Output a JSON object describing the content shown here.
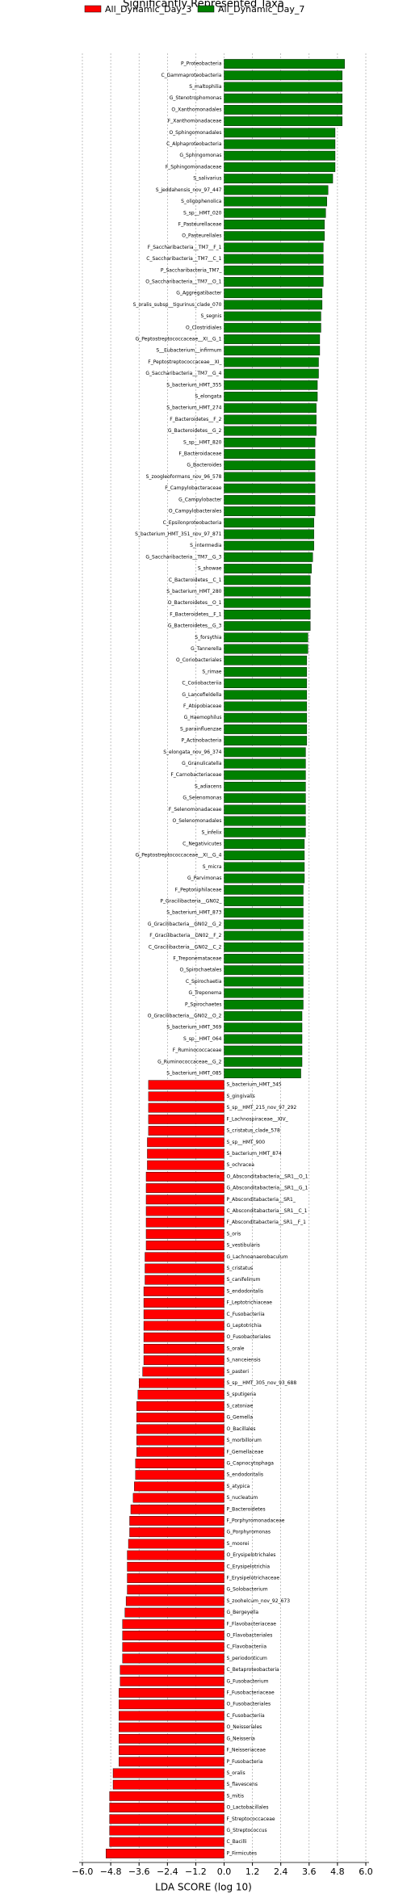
{
  "chart_data": {
    "type": "barh",
    "title": "Significantly Represented Taxa",
    "xlabel": "LDA SCORE (log 10)",
    "xlim": [
      -6.0,
      6.0
    ],
    "xticks": [
      {
        "value": -6.0,
        "label": "−6.0"
      },
      {
        "value": -4.8,
        "label": "−4.8"
      },
      {
        "value": -3.6,
        "label": "−3.6"
      },
      {
        "value": -2.4,
        "label": "−2.4"
      },
      {
        "value": -1.2,
        "label": "−1.2"
      },
      {
        "value": 0,
        "label": "0.0"
      },
      {
        "value": 1.2,
        "label": "1.2"
      },
      {
        "value": 2.4,
        "label": "2.4"
      },
      {
        "value": 3.6,
        "label": "3.6"
      },
      {
        "value": 4.8,
        "label": "4.8"
      },
      {
        "value": 6.0,
        "label": "6.0"
      }
    ],
    "grid": true,
    "series": [
      {
        "name": "All_Dynamic_Day_3",
        "color": "#ff0000",
        "categories": [
          "S_bacterium_HMT_345",
          "S_gingivalis",
          "S_sp__HMT_215_nov_97_292",
          "F_Lachnospiraceae__XIV_",
          "S_cristatus_clade_578",
          "S_sp__HMT_900",
          "S_bacterium_HMT_874",
          "S_ochracea",
          "O_Absconditabacteria__SR1__O_1",
          "G_Absconditabacteria__SR1__G_1",
          "P_Absconditabacteria__SR1_",
          "C_Absconditabacteria__SR1__C_1",
          "F_Absconditabacteria__SR1__F_1",
          "S_oris",
          "S_vestibularis",
          "G_Lachnoanaerobaculum",
          "S_cristatus",
          "S_canifelinum",
          "S_endodontalis",
          "F_Leptotrichiaceae",
          "C_Fusobacteriia",
          "G_Leptotrichia",
          "O_Fusobacteriales",
          "S_orale",
          "S_nanceiensis",
          "S_pasteri",
          "S_sp__HMT_305_nov_93_688",
          "S_sputigena",
          "S_catoniae",
          "G_Gemella",
          "O_Bacillales",
          "S_morbillorum",
          "F_Gemellaceae",
          "G_Capnocytophaga",
          "S_endodontalis",
          "S_atypica",
          "S_nucleatum",
          "P_Bacteroidetes",
          "F_Porphyromonadaceae",
          "G_Porphyromonas",
          "S_moorei",
          "O_Erysipelotrichales",
          "C_Erysipelotrichia",
          "F_Erysipelotrichaceae",
          "G_Solobacterium",
          "S_zoohelcum_nov_92_673",
          "G_Bergeyella",
          "F_Flavobacteriaceae",
          "O_Flavobacteriales",
          "C_Flavobacteriia",
          "S_periodonticum",
          "C_Betaproteobacteria",
          "G_Fusobacterium",
          "F_Fusobacteriaceae",
          "O_Fusobacteriales",
          "C_Fusobacteriia",
          "O_Neisseriales",
          "G_Neisseria",
          "F_Neisseriaceae",
          "P_Fusobacteria",
          "S_oralis",
          "S_flavescens",
          "S_mitis",
          "O_Lactobacillales",
          "F_Streptococcaceae",
          "G_Streptococcus",
          "C_Bacilli",
          "P_Firmicutes"
        ],
        "values": [
          -3.2,
          -3.2,
          -3.2,
          -3.2,
          -3.2,
          -3.25,
          -3.25,
          -3.25,
          -3.3,
          -3.3,
          -3.3,
          -3.3,
          -3.3,
          -3.3,
          -3.3,
          -3.35,
          -3.35,
          -3.35,
          -3.4,
          -3.4,
          -3.4,
          -3.4,
          -3.4,
          -3.4,
          -3.4,
          -3.45,
          -3.6,
          -3.65,
          -3.7,
          -3.7,
          -3.7,
          -3.7,
          -3.7,
          -3.75,
          -3.75,
          -3.8,
          -3.85,
          -3.95,
          -4.0,
          -4.0,
          -4.05,
          -4.1,
          -4.1,
          -4.1,
          -4.1,
          -4.15,
          -4.2,
          -4.3,
          -4.3,
          -4.3,
          -4.3,
          -4.4,
          -4.4,
          -4.45,
          -4.45,
          -4.45,
          -4.45,
          -4.45,
          -4.45,
          -4.45,
          -4.7,
          -4.7,
          -4.85,
          -4.85,
          -4.85,
          -4.85,
          -4.85,
          -5.0
        ]
      },
      {
        "name": "All_Dynamic_Day_7",
        "color": "#008000",
        "categories": [
          "P_Proteobacteria",
          "C_Gammaproteobacteria",
          "S_maltophilia",
          "G_Stenotrophomonas",
          "O_Xanthomonadales",
          "F_Xanthomonadaceae",
          "O_Sphingomonadales",
          "C_Alphaproteobacteria",
          "G_Sphingomonas",
          "F_Sphingomonadaceae",
          "S_salivarius",
          "S_jeddahensis_nov_97_447",
          "S_oligophenolica",
          "S_sp__HMT_020",
          "F_Pasteurellaceae",
          "O_Pasteurellales",
          "F_Saccharibacteria__TM7__F_1",
          "C_Saccharibacteria__TM7__C_1",
          "P_Saccharibacteria_TM7_",
          "O_Saccharibacteria__TM7__O_1",
          "G_Aggregatibacter",
          "S_oralis_subsp__tigurinus_clade_070",
          "S_segnis",
          "O_Clostridiales",
          "G_Peptostreptococcaceae__XI__G_1",
          "S__Eubacterium__infirmum",
          "F_Peptostreptococcaceae__XI_",
          "G_Saccharibacteria__TM7__G_4",
          "S_bacterium_HMT_355",
          "S_elongata",
          "S_bacterium_HMT_274",
          "F_Bacteroidetes__F_2",
          "G_Bacteroidetes__G_2",
          "S_sp__HMT_820",
          "F_Bacteroidaceae",
          "G_Bacteroides",
          "S_zoogleoformans_nov_96_578",
          "F_Campylobacteraceae",
          "G_Campylobacter",
          "O_Campylobacterales",
          "C_Epsilonproteobacteria",
          "S_bacterium_HMT_351_nov_97_871",
          "S_intermedia",
          "G_Saccharibacteria__TM7__G_3",
          "S_showae",
          "C_Bacteroidetes__C_1",
          "S_bacterium_HMT_280",
          "O_Bacteroidetes__O_1",
          "F_Bacteroidetes__F_1",
          "G_Bacteroidetes__G_3",
          "S_forsythia",
          "G_Tannerella",
          "O_Coriobacteriales",
          "S_rimae",
          "C_Coriobacteriia",
          "G_Lancefieldella",
          "F_Atopobiaceae",
          "G_Haemophilus",
          "S_parainfluenzae",
          "P_Actinobacteria",
          "S_elongata_nov_96_374",
          "G_Granulicatella",
          "F_Carnobacteriaceae",
          "S_adiacens",
          "G_Selenomonas",
          "F_Selenomonadaceae",
          "O_Selenomonadales",
          "S_infelix",
          "C_Negativicutes",
          "G_Peptostreptococcaceae__XI__G_4",
          "S_micra",
          "G_Parvimonas",
          "F_Peptoniphilaceae",
          "P_Gracilibacteria__GN02_",
          "S_bacterium_HMT_873",
          "G_Gracilibacteria__GN02__G_2",
          "F_Gracilibacteria__GN02__F_2",
          "C_Gracilibacteria__GN02__C_2",
          "F_Treponemataceae",
          "O_Spirochaetales",
          "C_Spirochaetia",
          "G_Treponema",
          "P_Spirochaetes",
          "O_Gracilibacteria__GN02__O_2",
          "S_bacterium_HMT_369",
          "S_sp__HMT_064",
          "F_Ruminococcaceae",
          "G_Ruminococcaceae__G_2",
          "S_bacterium_HMT_085"
        ],
        "values": [
          5.1,
          5.0,
          5.0,
          5.0,
          5.0,
          5.0,
          4.7,
          4.7,
          4.7,
          4.7,
          4.6,
          4.4,
          4.35,
          4.3,
          4.25,
          4.25,
          4.2,
          4.2,
          4.2,
          4.2,
          4.15,
          4.15,
          4.1,
          4.1,
          4.05,
          4.05,
          4.0,
          4.0,
          3.95,
          3.95,
          3.9,
          3.9,
          3.9,
          3.85,
          3.85,
          3.85,
          3.85,
          3.85,
          3.85,
          3.85,
          3.8,
          3.8,
          3.8,
          3.75,
          3.7,
          3.65,
          3.65,
          3.65,
          3.65,
          3.65,
          3.55,
          3.55,
          3.5,
          3.5,
          3.5,
          3.5,
          3.5,
          3.5,
          3.5,
          3.5,
          3.45,
          3.45,
          3.45,
          3.45,
          3.45,
          3.45,
          3.45,
          3.45,
          3.4,
          3.4,
          3.4,
          3.4,
          3.35,
          3.35,
          3.35,
          3.35,
          3.35,
          3.35,
          3.35,
          3.35,
          3.35,
          3.35,
          3.35,
          3.3,
          3.3,
          3.3,
          3.3,
          3.3,
          3.25
        ]
      }
    ]
  }
}
